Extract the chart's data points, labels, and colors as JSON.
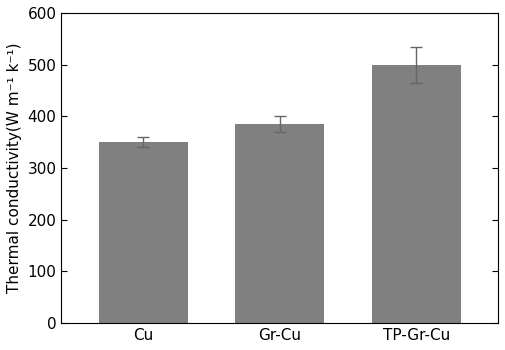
{
  "categories": [
    "Cu",
    "Gr-Cu",
    "TP-Gr-Cu"
  ],
  "values": [
    350,
    385,
    500
  ],
  "errors": [
    10,
    15,
    35
  ],
  "bar_color": "#808080",
  "bar_width": 0.65,
  "ylabel": "Thermal conductivity(W m⁻¹ k⁻¹)",
  "ylim": [
    0,
    600
  ],
  "yticks": [
    0,
    100,
    200,
    300,
    400,
    500,
    600
  ],
  "background_color": "#ffffff",
  "error_capsize": 4,
  "error_color": "#666666",
  "ylabel_fontsize": 11,
  "tick_fontsize": 11
}
